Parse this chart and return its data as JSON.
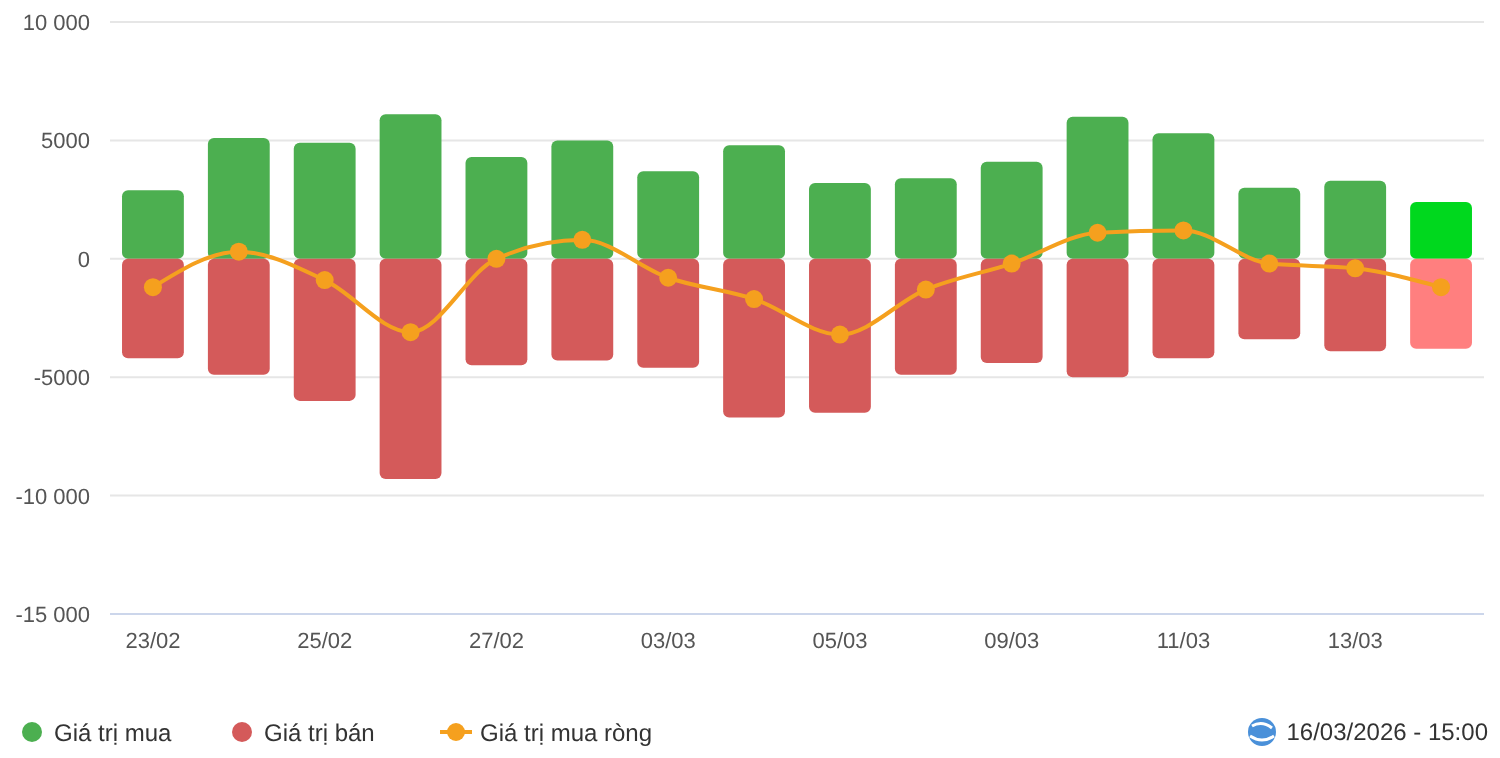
{
  "chart_data": {
    "type": "bar",
    "stacked": true,
    "categories": [
      "23/02",
      null,
      "25/02",
      null,
      "27/02",
      null,
      "03/03",
      null,
      "05/03",
      null,
      "09/03",
      null,
      "11/03",
      null,
      "13/03",
      null
    ],
    "series": [
      {
        "name": "Giá trị mua",
        "color": "#4caf50",
        "colors": [
          "#4caf50",
          "#4caf50",
          "#4caf50",
          "#4caf50",
          "#4caf50",
          "#4caf50",
          "#4caf50",
          "#4caf50",
          "#4caf50",
          "#4caf50",
          "#4caf50",
          "#4caf50",
          "#4caf50",
          "#4caf50",
          "#4caf50",
          "#00d81e"
        ],
        "values": [
          2900,
          5100,
          4900,
          6100,
          4300,
          5000,
          3700,
          4800,
          3200,
          3400,
          4100,
          6000,
          5300,
          3000,
          3300,
          2400
        ]
      },
      {
        "name": "Giá trị bán",
        "color": "#d45a5a",
        "colors": [
          "#d45a5a",
          "#d45a5a",
          "#d45a5a",
          "#d45a5a",
          "#d45a5a",
          "#d45a5a",
          "#d45a5a",
          "#d45a5a",
          "#d45a5a",
          "#d45a5a",
          "#d45a5a",
          "#d45a5a",
          "#d45a5a",
          "#d45a5a",
          "#d45a5a",
          "#ff7f7f"
        ],
        "values": [
          -4200,
          -4900,
          -6000,
          -9300,
          -4500,
          -4300,
          -4600,
          -6700,
          -6500,
          -4900,
          -4400,
          -5000,
          -4200,
          -3400,
          -3900,
          -3800
        ]
      },
      {
        "name": "Giá trị mua ròng",
        "type": "line",
        "color": "#f5a01e",
        "values": [
          -1200,
          300,
          -900,
          -3100,
          0,
          800,
          -800,
          -1700,
          -3200,
          -1300,
          -200,
          1100,
          1200,
          -200,
          -400,
          -1200
        ]
      }
    ],
    "ylim": [
      -15000,
      10000
    ],
    "yticks": [
      {
        "value": -15000,
        "label": "-15 000"
      },
      {
        "value": -10000,
        "label": "-10 000"
      },
      -5000,
      0,
      5000,
      {
        "value": 10000,
        "label": "10 000"
      }
    ],
    "grid": "y",
    "legend": "bottom",
    "marker": "circle",
    "line_style": "solid",
    "annotations": [
      "16/03/2026 - 15:00"
    ]
  }
}
